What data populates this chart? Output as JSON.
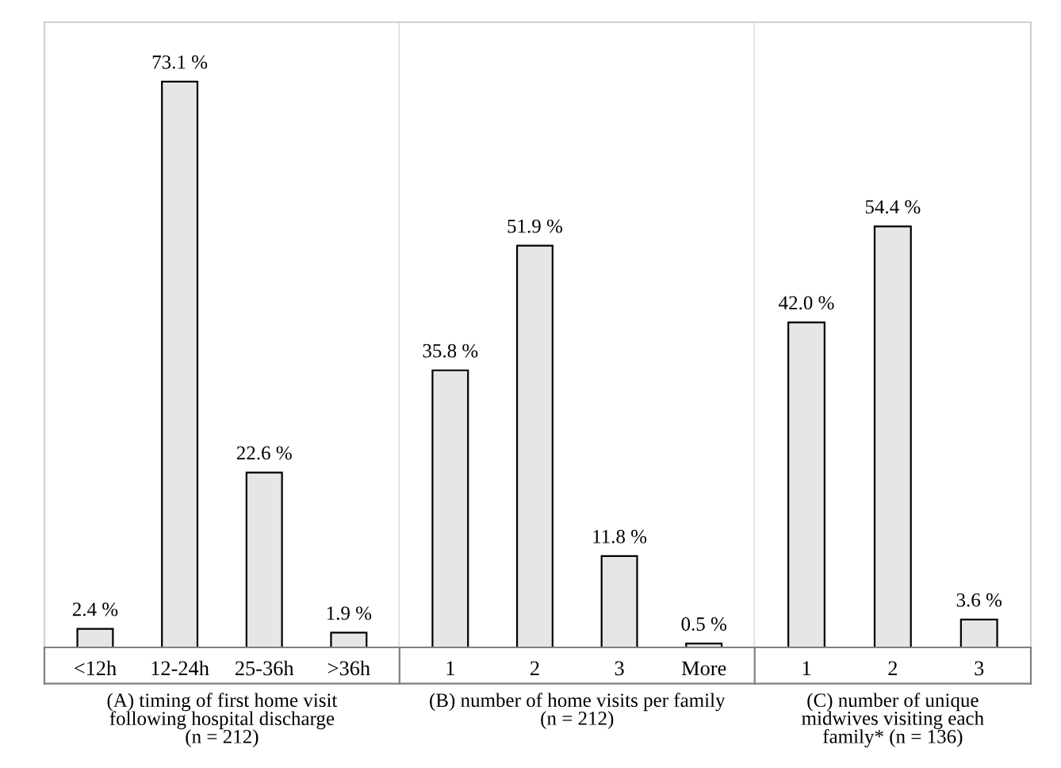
{
  "chart_data": [
    {
      "type": "bar",
      "xlabel": "(A) timing of first home visit\nfollowing hospital discharge\n(n = 212)",
      "categories": [
        "<12h",
        "12-24h",
        "25-36h",
        ">36h"
      ],
      "values": [
        2.4,
        73.1,
        22.6,
        1.9
      ],
      "value_labels": [
        "2.4 %",
        "73.1 %",
        "22.6 %",
        "1.9 %"
      ],
      "color": "#e6e6e6",
      "tick_labels": "x"
    },
    {
      "type": "bar",
      "xlabel": "(B) number of home visits per family\n(n = 212)",
      "categories": [
        "1",
        "2",
        "3",
        "More"
      ],
      "values": [
        35.8,
        51.9,
        11.8,
        0.5
      ],
      "value_labels": [
        "35.8 %",
        "51.9 %",
        "11.8 %",
        "0.5 %"
      ],
      "color": "#e6e6e6",
      "tick_labels": "x"
    },
    {
      "type": "bar",
      "xlabel": "(C) number of unique\nmidwives visiting each\nfamily* (n = 136)",
      "categories": [
        "1",
        "2",
        "3"
      ],
      "values": [
        42.0,
        54.4,
        3.6
      ],
      "value_labels": [
        "42.0 %",
        "54.4 %",
        "3.6 %"
      ],
      "color": "#e6e6e6",
      "tick_labels": "x"
    }
  ]
}
